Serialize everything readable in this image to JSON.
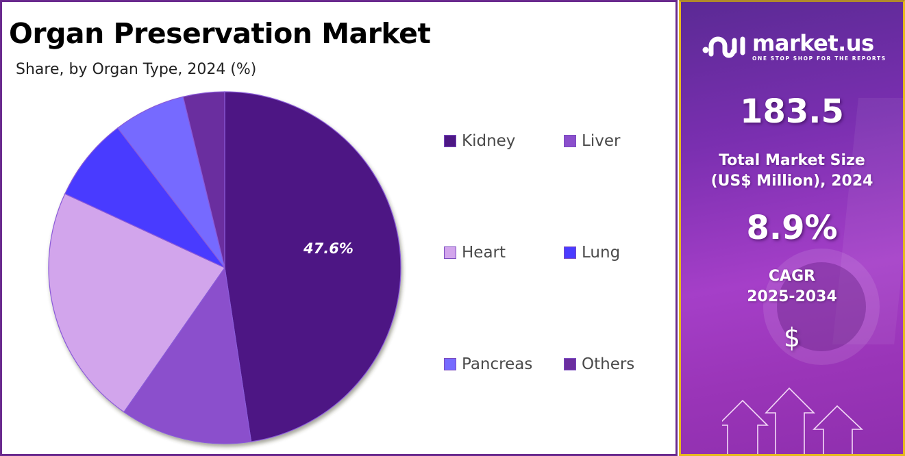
{
  "header": {
    "title": "Organ Preservation Market",
    "subtitle": "Share, by Organ Type, 2024 (%)"
  },
  "pie": {
    "highlight_label": "47.6%"
  },
  "legend": {
    "items": [
      {
        "label": "Kidney",
        "color": "#4d1784"
      },
      {
        "label": "Liver",
        "color": "#8b4fcc"
      },
      {
        "label": "Heart",
        "color": "#d2a5ec"
      },
      {
        "label": "Lung",
        "color": "#4a3bff"
      },
      {
        "label": "Pancreas",
        "color": "#766bff"
      },
      {
        "label": "Others",
        "color": "#6b2e9f"
      }
    ]
  },
  "sidebar": {
    "logo_name": "market.us",
    "logo_tagline": "ONE STOP SHOP FOR THE REPORTS",
    "market_size_value": "183.5",
    "market_size_label_line1": "Total Market Size",
    "market_size_label_line2": "(US$ Million), 2024",
    "cagr_value": "8.9%",
    "cagr_label_line1": "CAGR",
    "cagr_label_line2": "2025-2034",
    "currency_symbol": "$"
  },
  "chart_data": {
    "type": "pie",
    "title": "Organ Preservation Market",
    "subtitle": "Share, by Organ Type, 2024 (%)",
    "categories": [
      "Kidney",
      "Liver",
      "Heart",
      "Lung",
      "Pancreas",
      "Others"
    ],
    "values": [
      47.6,
      12.1,
      22.2,
      7.7,
      6.6,
      3.8
    ],
    "colors": [
      "#4d1784",
      "#8b4fcc",
      "#d2a5ec",
      "#4a3bff",
      "#766bff",
      "#6b2e9f"
    ],
    "data_labels": {
      "Kidney": "47.6%"
    },
    "legend_position": "right",
    "start_angle": "12 o'clock, clockwise"
  }
}
